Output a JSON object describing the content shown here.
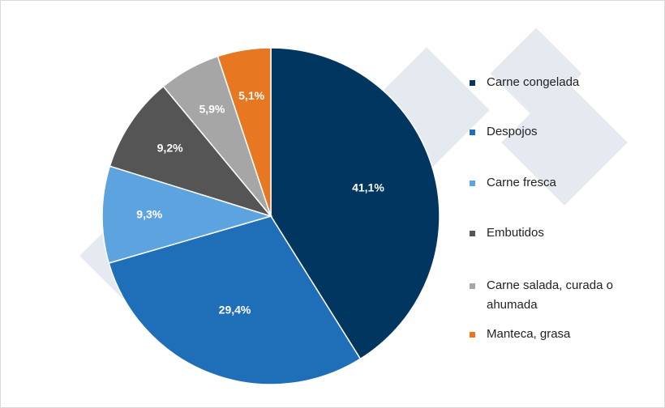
{
  "chart_data": {
    "type": "pie",
    "categories": [
      "Carne congelada",
      "Despojos",
      "Carne fresca",
      "Embutidos",
      "Carne salada, curada o ahumada",
      "Manteca, grasa"
    ],
    "values": [
      41.1,
      29.4,
      9.3,
      9.2,
      5.9,
      5.1
    ],
    "value_labels": [
      "41,1%",
      "29,4%",
      "9,3%",
      "9,2%",
      "5,9%",
      "5,1%"
    ],
    "colors": [
      "#003660",
      "#1f6eb8",
      "#5da3e0",
      "#555555",
      "#a6a6a6",
      "#e87722"
    ]
  }
}
